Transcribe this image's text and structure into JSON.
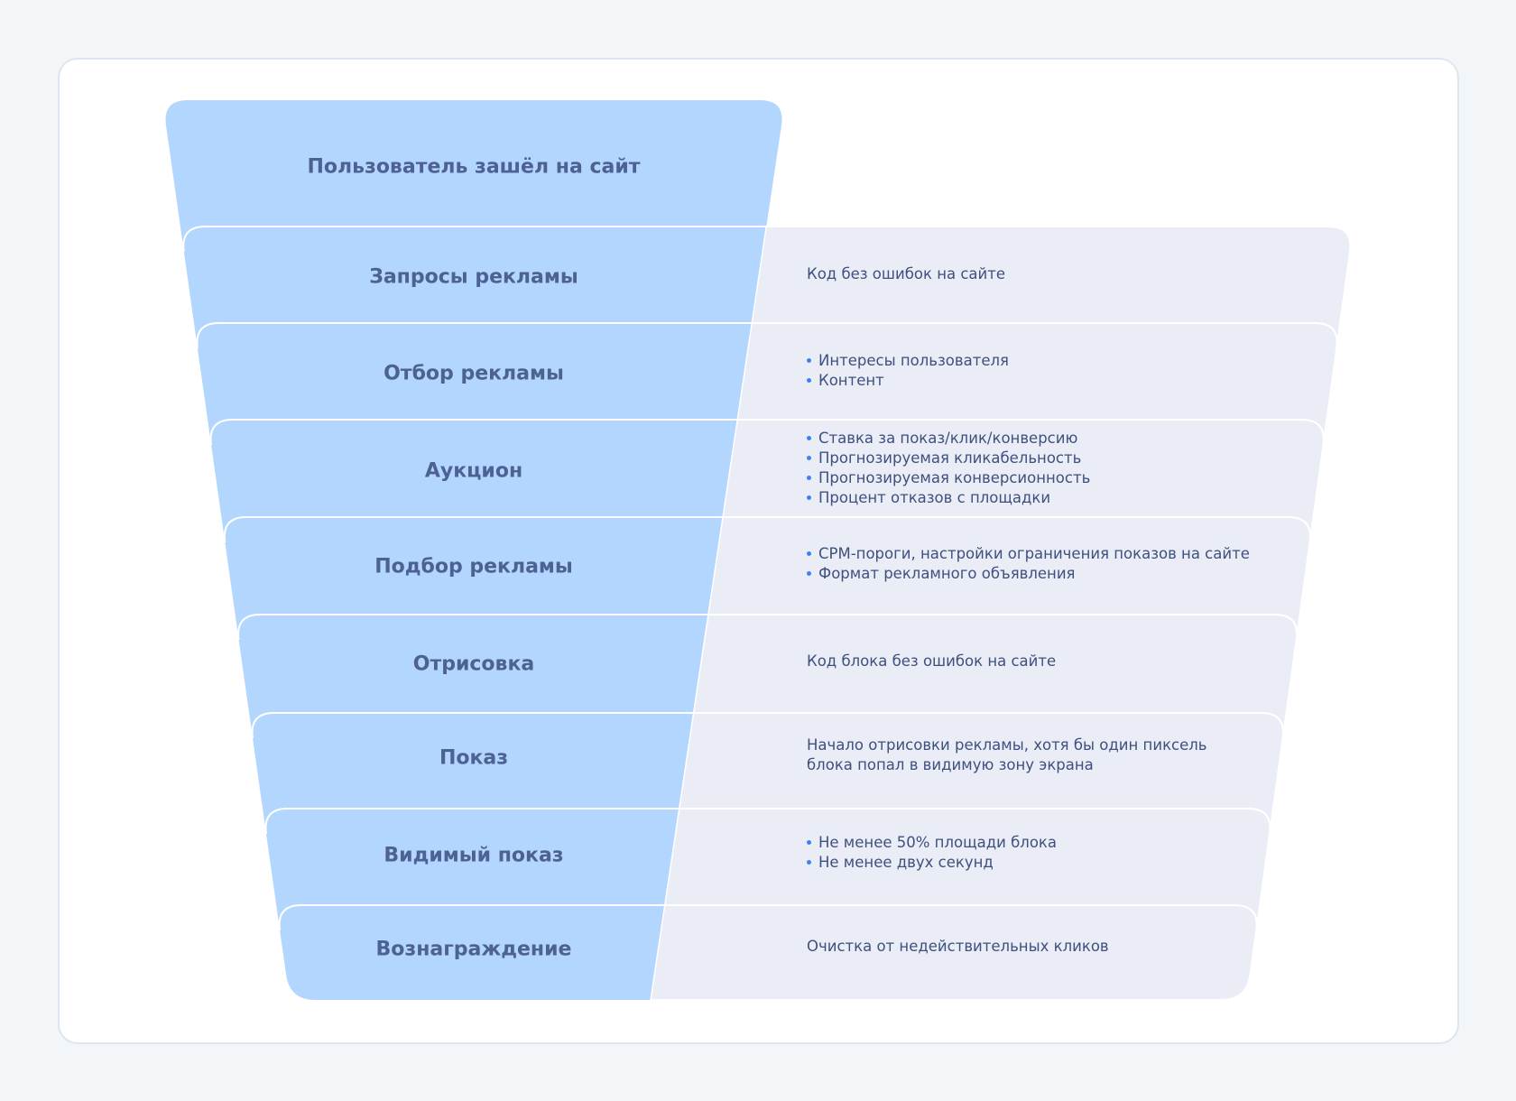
{
  "colors": {
    "stage_fill": "#b3d6fe",
    "detail_fill": "#eaedf5",
    "bullet": "#3b82f6",
    "text": "#4d6192"
  },
  "top_stage": {
    "label": "Пользователь зашёл на сайт"
  },
  "stages": [
    {
      "label": "Запросы рекламы",
      "text": "Код без ошибок на сайте"
    },
    {
      "label": "Отбор рекламы",
      "bullets": [
        "Интересы пользователя",
        "Контент"
      ]
    },
    {
      "label": "Аукцион",
      "bullets": [
        "Ставка за показ/клик/конверсию",
        "Прогнозируемая кликабельность",
        "Прогнозируемая конверсионность",
        "Процент отказов с площадки"
      ]
    },
    {
      "label": "Подбор рекламы",
      "bullets": [
        "CPM-пороги, настройки ограничения показов на сайте",
        "Формат рекламного объявления"
      ]
    },
    {
      "label": "Отрисовка",
      "text": "Код блока без ошибок на сайте"
    },
    {
      "label": "Показ",
      "lines": [
        "Начало отрисовки рекламы, хотя бы один пиксель",
        "блока попал в видимую зону экрана"
      ]
    },
    {
      "label": "Видимый показ",
      "bullets": [
        "Не менее 50% площади блока",
        "Не менее двух секунд"
      ]
    },
    {
      "label": "Вознаграждение",
      "text": "Очистка от недействительных кликов"
    }
  ]
}
